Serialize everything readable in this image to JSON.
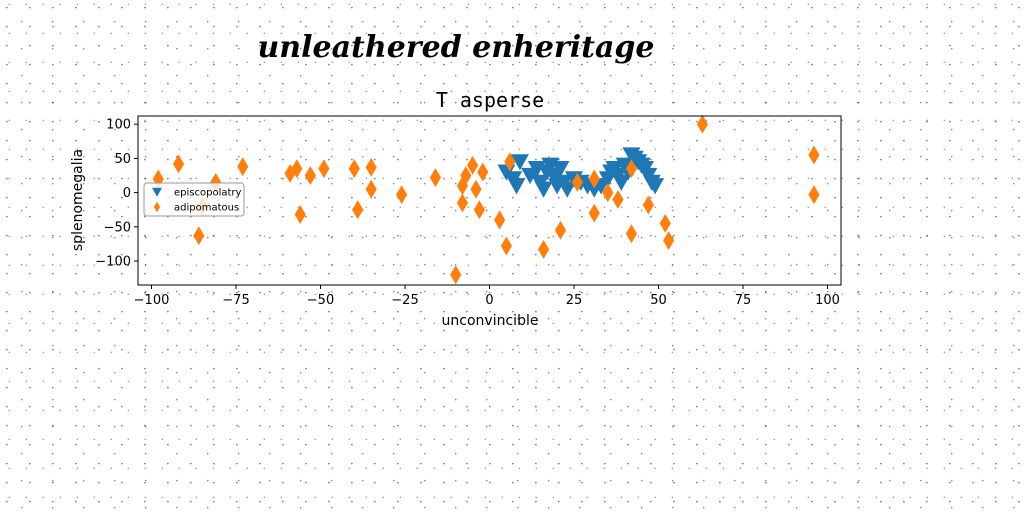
{
  "figure": {
    "suptitle": "unleathered enheritage"
  },
  "chart_data": {
    "type": "scatter",
    "title": "T asperse",
    "xlabel": "unconvincible",
    "ylabel": "splenomegalia",
    "xlim": [
      -104,
      104
    ],
    "ylim": [
      -135,
      112
    ],
    "xticks": [
      -100,
      -75,
      -50,
      -25,
      0,
      25,
      50,
      75,
      100
    ],
    "yticks": [
      -100,
      -50,
      0,
      50,
      100
    ],
    "xtick_labels": [
      "−100",
      "−75",
      "−50",
      "−25",
      "0",
      "25",
      "50",
      "75",
      "100"
    ],
    "ytick_labels": [
      "−100",
      "−50",
      "0",
      "50",
      "100"
    ],
    "grid": false,
    "legend_position": "center-left",
    "series": [
      {
        "name": "episcopolatry",
        "marker": "triangle-down",
        "color": "#1f77b4",
        "points": [
          [
            5,
            30
          ],
          [
            7,
            20
          ],
          [
            8,
            10
          ],
          [
            9,
            45
          ],
          [
            12,
            25
          ],
          [
            14,
            35
          ],
          [
            15,
            15
          ],
          [
            16,
            5
          ],
          [
            17,
            30
          ],
          [
            18,
            40
          ],
          [
            19,
            25
          ],
          [
            20,
            10
          ],
          [
            21,
            35
          ],
          [
            22,
            15
          ],
          [
            23,
            5
          ],
          [
            25,
            20
          ],
          [
            27,
            15
          ],
          [
            29,
            10
          ],
          [
            31,
            5
          ],
          [
            33,
            10
          ],
          [
            35,
            20
          ],
          [
            36,
            30
          ],
          [
            37,
            35
          ],
          [
            38,
            25
          ],
          [
            39,
            15
          ],
          [
            40,
            40
          ],
          [
            41,
            30
          ],
          [
            42,
            55
          ],
          [
            43,
            50
          ],
          [
            44,
            45
          ],
          [
            45,
            40
          ],
          [
            46,
            35
          ],
          [
            47,
            25
          ],
          [
            48,
            15
          ],
          [
            49,
            10
          ]
        ]
      },
      {
        "name": "adipomatous",
        "marker": "thin-diamond",
        "color": "#ff7f0e",
        "points": [
          [
            -98,
            20
          ],
          [
            -92,
            42
          ],
          [
            -86,
            -63
          ],
          [
            -85,
            -20
          ],
          [
            -81,
            15
          ],
          [
            -73,
            38
          ],
          [
            -59,
            28
          ],
          [
            -57,
            35
          ],
          [
            -56,
            -32
          ],
          [
            -53,
            25
          ],
          [
            -49,
            35
          ],
          [
            -40,
            35
          ],
          [
            -39,
            -25
          ],
          [
            -35,
            5
          ],
          [
            -35,
            37
          ],
          [
            -26,
            -3
          ],
          [
            -16,
            22
          ],
          [
            -10,
            -120
          ],
          [
            -8,
            -15
          ],
          [
            -8,
            10
          ],
          [
            -7,
            25
          ],
          [
            -5,
            40
          ],
          [
            -4,
            5
          ],
          [
            -3,
            -25
          ],
          [
            -2,
            30
          ],
          [
            3,
            -40
          ],
          [
            5,
            -78
          ],
          [
            6,
            45
          ],
          [
            16,
            -83
          ],
          [
            21,
            -55
          ],
          [
            26,
            15
          ],
          [
            31,
            -30
          ],
          [
            31,
            20
          ],
          [
            35,
            0
          ],
          [
            38,
            -10
          ],
          [
            42,
            -60
          ],
          [
            42,
            35
          ],
          [
            47,
            -18
          ],
          [
            52,
            -45
          ],
          [
            53,
            -70
          ],
          [
            63,
            100
          ],
          [
            96,
            -3
          ],
          [
            96,
            55
          ]
        ]
      }
    ]
  }
}
